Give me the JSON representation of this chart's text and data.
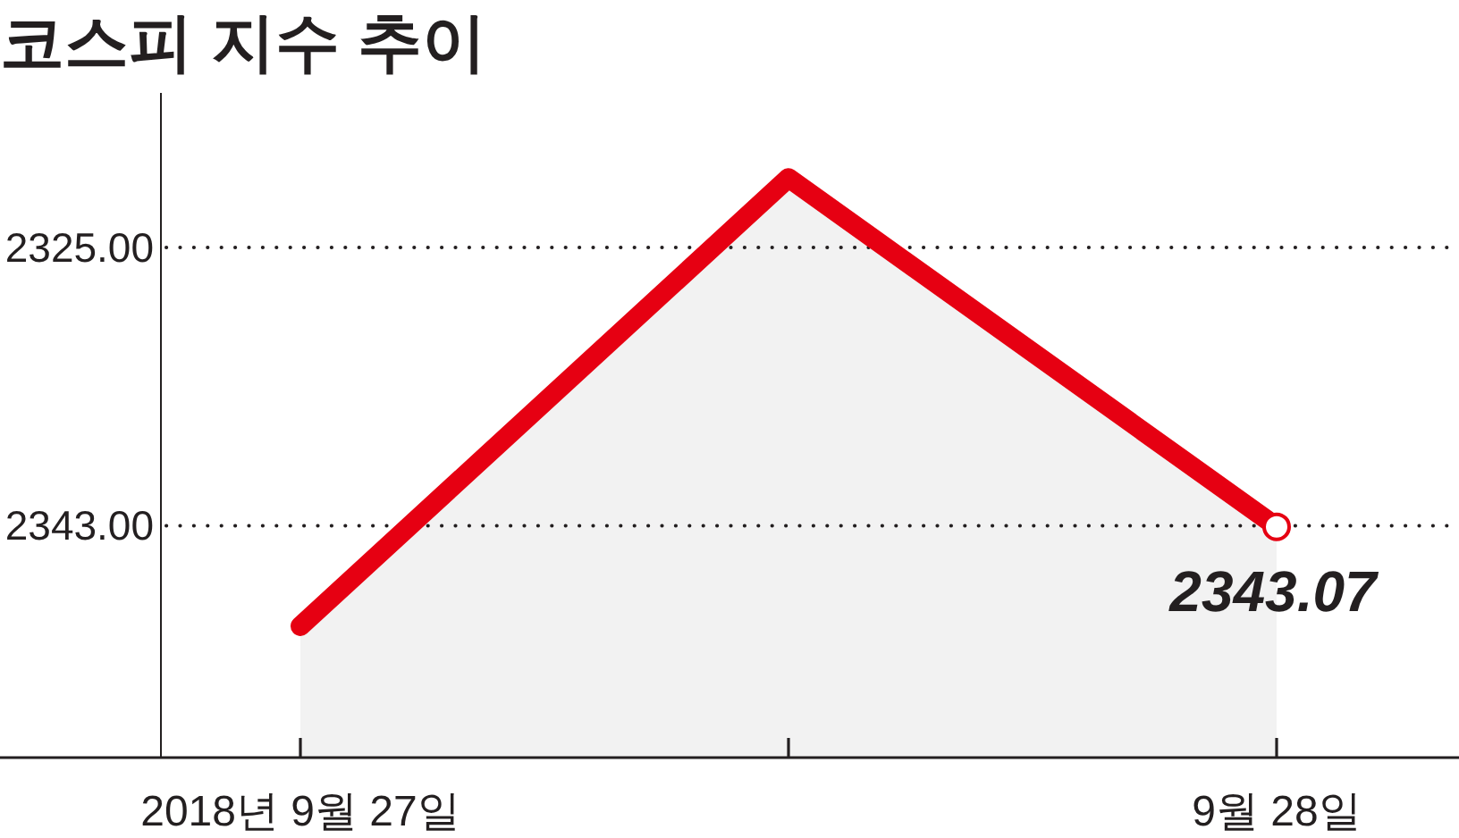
{
  "chart_data": {
    "type": "line",
    "title": "코스피 지수 추이",
    "categories": [
      "2018년 9월 27일",
      null,
      "9월 28일"
    ],
    "series": [
      {
        "color": "#e60012",
        "values": [
          2349.5,
          2320.5,
          2343.07
        ],
        "value_labels": [
          null,
          null,
          "2343.07"
        ],
        "lower": [
          2358,
          2358,
          2358
        ],
        "upper": [
          2349.5,
          2320.5,
          2343.07
        ]
      }
    ],
    "ylim": [
      2358,
      2315
    ],
    "yticks": [
      {
        "value": 2325,
        "label": "2325.00"
      },
      {
        "value": 2343,
        "label": "2343.00"
      }
    ],
    "grid": "y"
  }
}
